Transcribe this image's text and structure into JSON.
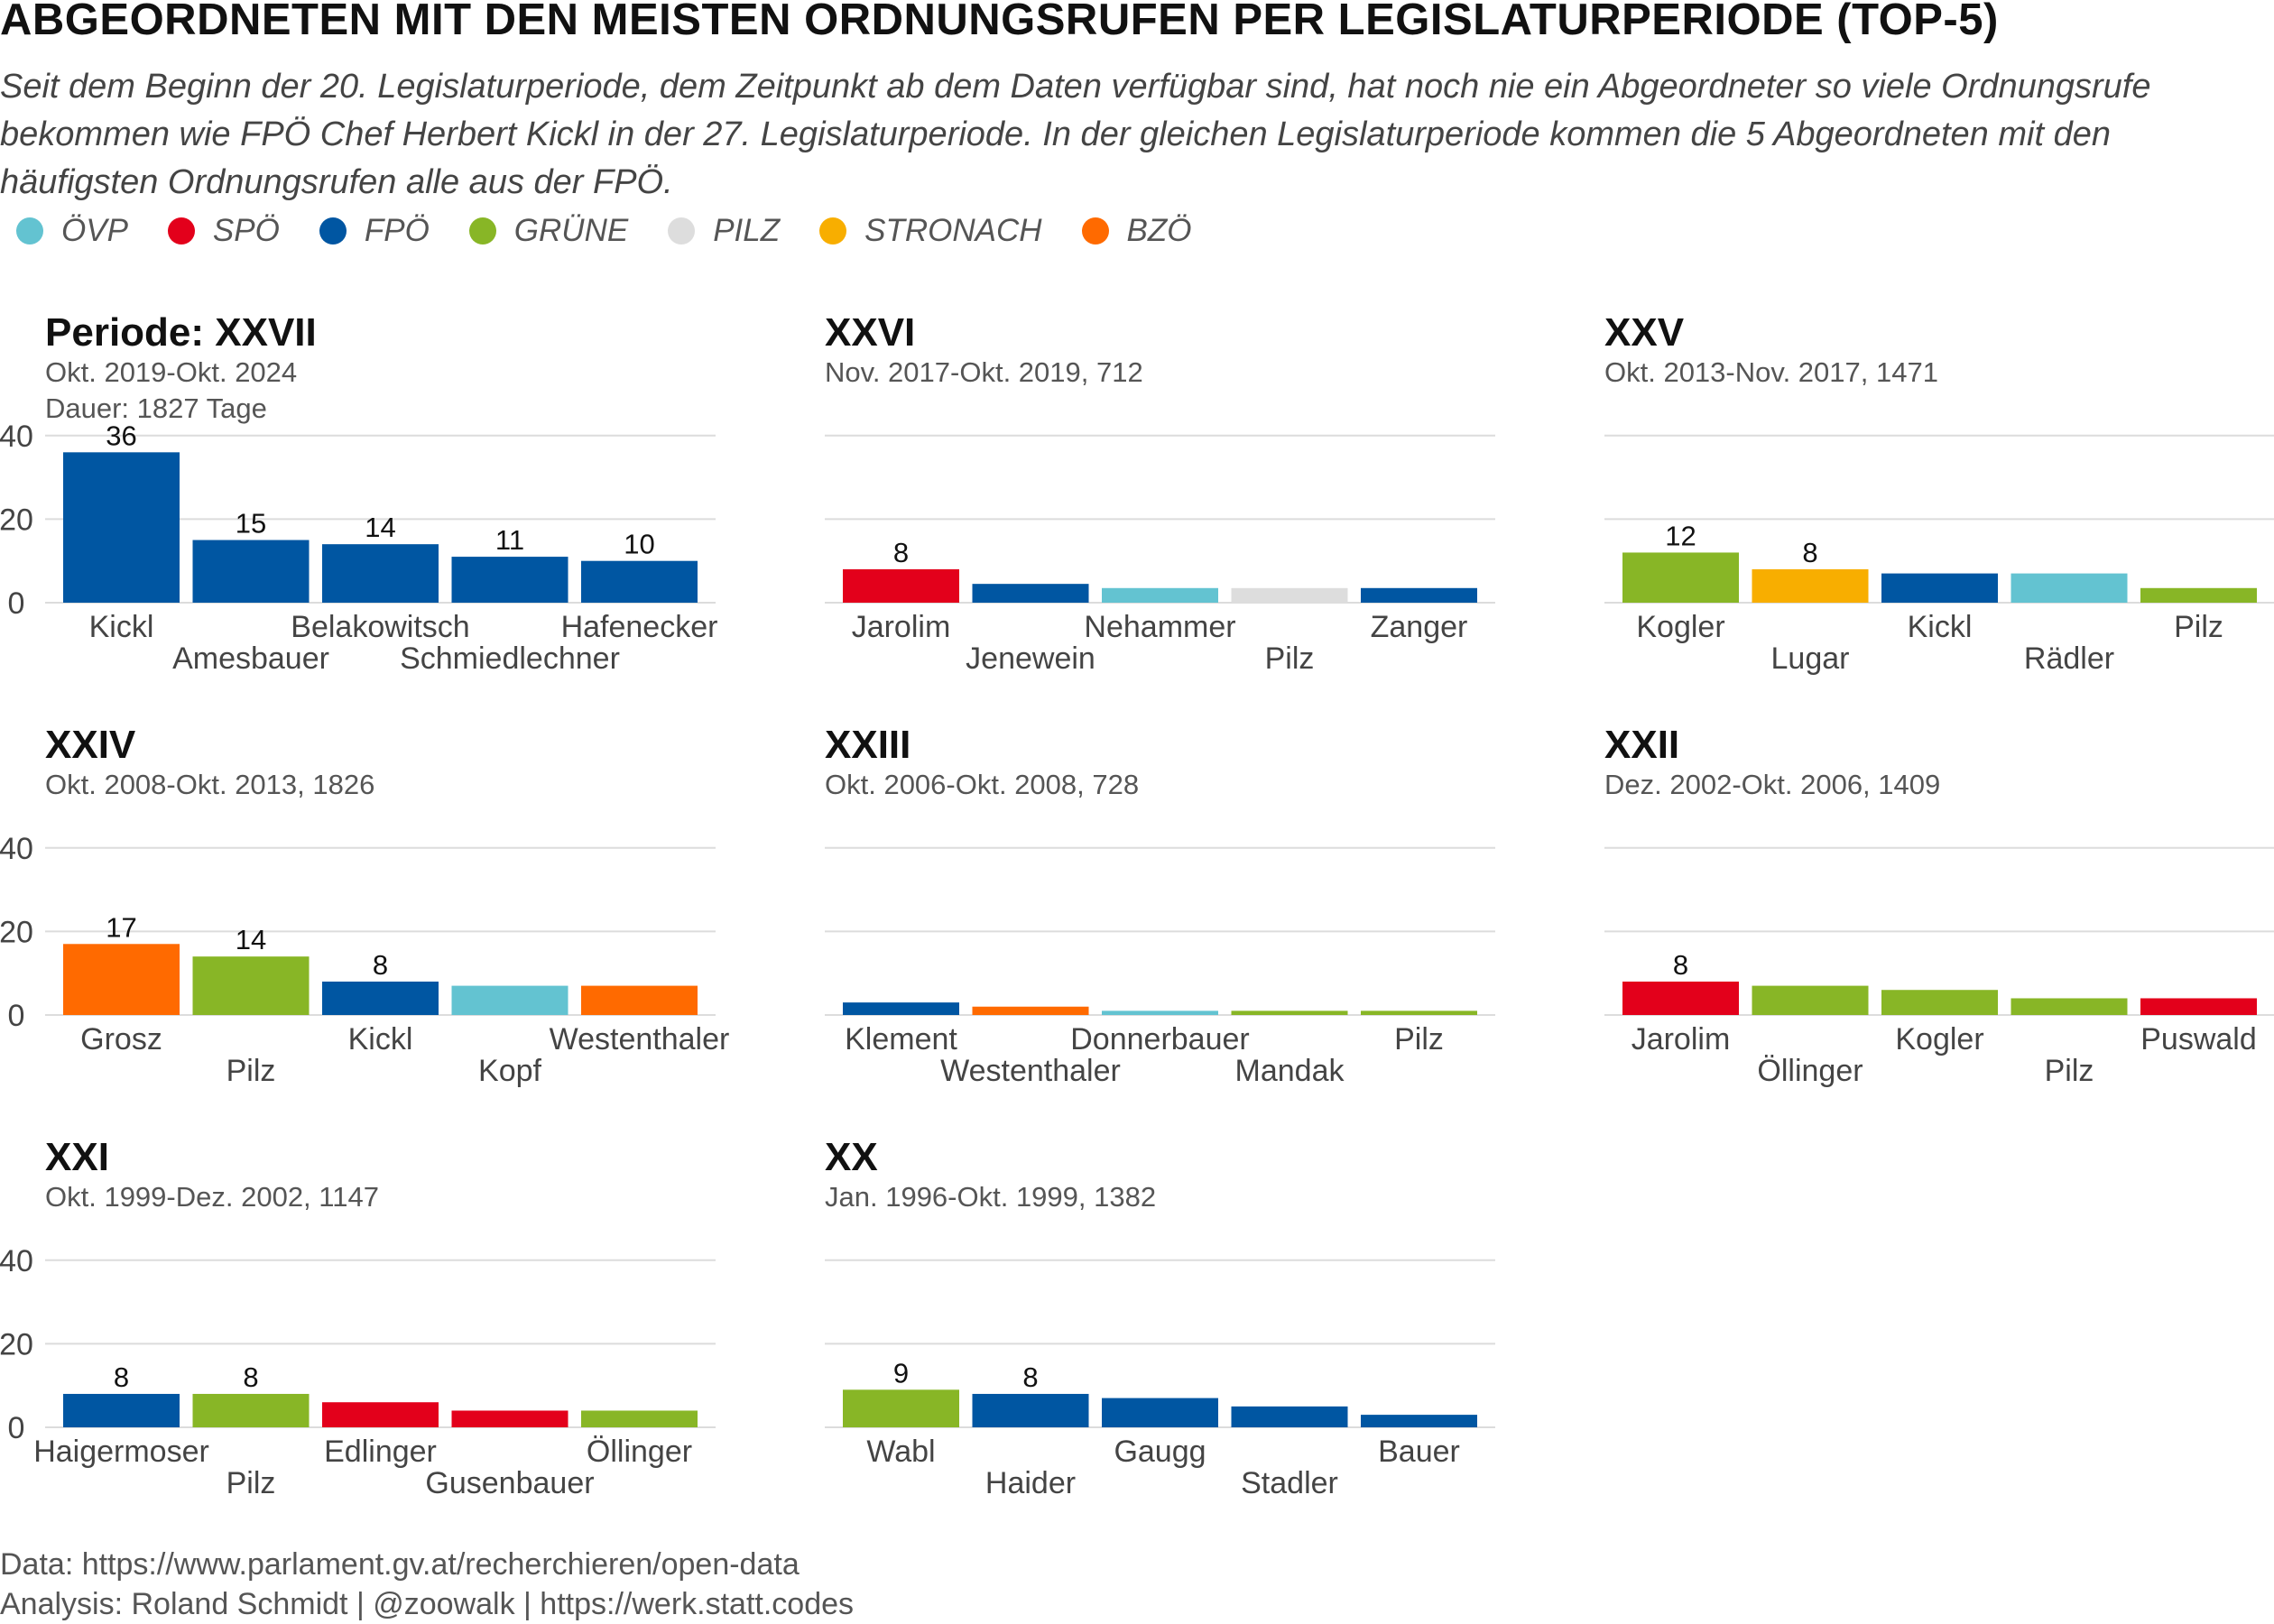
{
  "title": "ABGEORDNETEN MIT DEN MEISTEN ORDNUNGSRUFEN PER LEGISLATURPERIODE (TOP-5)",
  "subtitle": "Seit dem Beginn der 20. Legislaturperiode, dem Zeitpunkt ab dem Daten verfügbar sind, hat noch nie ein Abgeordneter so viele Ordnungsrufe bekommen wie FPÖ Chef Herbert Kickl in der 27. Legislaturperiode. In der gleichen Legislaturperiode kommen die 5 Abgeordneten mit den häufigsten Ordnungsrufen alle aus der FPÖ.",
  "legend": [
    {
      "label": "ÖVP",
      "color": "#63c3d1"
    },
    {
      "label": "SPÖ",
      "color": "#e3001b"
    },
    {
      "label": "FPÖ",
      "color": "#0056a2"
    },
    {
      "label": "GRÜNE",
      "color": "#88b626"
    },
    {
      "label": "PILZ",
      "color": "#dddddd"
    },
    {
      "label": "STRONACH",
      "color": "#f8ae00"
    },
    {
      "label": "BZÖ",
      "color": "#ff6a00"
    }
  ],
  "party_colors": {
    "ÖVP": "#63c3d1",
    "SPÖ": "#e3001b",
    "FPÖ": "#0056a2",
    "GRÜNE": "#88b626",
    "PILZ": "#dddddd",
    "STRONACH": "#f8ae00",
    "BZÖ": "#ff6a00"
  },
  "chart_data": [
    {
      "type": "bar",
      "title": "Periode: XXVII",
      "subtitle_lines": [
        "Okt. 2019-Okt. 2024",
        "Dauer: 1827 Tage"
      ],
      "categories": [
        "Kickl",
        "Amesbauer",
        "Belakowitsch",
        "Schmiedlechner",
        "Hafenecker"
      ],
      "values": [
        36,
        15,
        14,
        11,
        10
      ],
      "parties": [
        "FPÖ",
        "FPÖ",
        "FPÖ",
        "FPÖ",
        "FPÖ"
      ],
      "value_labels": [
        "36",
        "15",
        "14",
        "11",
        "10"
      ],
      "ylim": [
        0,
        40
      ],
      "yticks": [
        "0",
        "20",
        "40"
      ],
      "show_yticks": true
    },
    {
      "type": "bar",
      "title": "XXVI",
      "subtitle_lines": [
        "Nov. 2017-Okt. 2019, 712"
      ],
      "categories": [
        "Jarolim",
        "Jenewein",
        "Nehammer",
        "Pilz",
        "Zanger"
      ],
      "values": [
        8,
        4.5,
        3.5,
        3.5,
        3.5
      ],
      "parties": [
        "SPÖ",
        "FPÖ",
        "ÖVP",
        "PILZ",
        "FPÖ"
      ],
      "value_labels": [
        "8",
        "",
        "",
        "",
        ""
      ],
      "ylim": [
        0,
        40
      ],
      "show_yticks": false
    },
    {
      "type": "bar",
      "title": "XXV",
      "subtitle_lines": [
        "Okt. 2013-Nov. 2017, 1471"
      ],
      "categories": [
        "Kogler",
        "Lugar",
        "Kickl",
        "Rädler",
        "Pilz"
      ],
      "values": [
        12,
        8,
        7,
        7,
        3.5
      ],
      "parties": [
        "GRÜNE",
        "STRONACH",
        "FPÖ",
        "ÖVP",
        "GRÜNE"
      ],
      "value_labels": [
        "12",
        "8",
        "",
        "",
        ""
      ],
      "ylim": [
        0,
        40
      ],
      "show_yticks": false
    },
    {
      "type": "bar",
      "title": "XXIV",
      "subtitle_lines": [
        "Okt. 2008-Okt. 2013, 1826"
      ],
      "categories": [
        "Grosz",
        "Pilz",
        "Kickl",
        "Kopf",
        "Westenthaler"
      ],
      "values": [
        17,
        14,
        8,
        7,
        7
      ],
      "parties": [
        "BZÖ",
        "GRÜNE",
        "FPÖ",
        "ÖVP",
        "BZÖ"
      ],
      "value_labels": [
        "17",
        "14",
        "8",
        "",
        ""
      ],
      "ylim": [
        0,
        40
      ],
      "yticks": [
        "0",
        "20",
        "40"
      ],
      "show_yticks": true
    },
    {
      "type": "bar",
      "title": "XXIII",
      "subtitle_lines": [
        "Okt. 2006-Okt. 2008, 728"
      ],
      "categories": [
        "Klement",
        "Westenthaler",
        "Donnerbauer",
        "Mandak",
        "Pilz"
      ],
      "values": [
        3,
        2,
        1,
        1,
        1
      ],
      "parties": [
        "FPÖ",
        "BZÖ",
        "ÖVP",
        "GRÜNE",
        "GRÜNE"
      ],
      "value_labels": [
        "",
        "",
        "",
        "",
        ""
      ],
      "ylim": [
        0,
        40
      ],
      "show_yticks": false
    },
    {
      "type": "bar",
      "title": "XXII",
      "subtitle_lines": [
        "Dez. 2002-Okt. 2006, 1409"
      ],
      "categories": [
        "Jarolim",
        "Öllinger",
        "Kogler",
        "Pilz",
        "Puswald"
      ],
      "values": [
        8,
        7,
        6,
        4,
        4
      ],
      "parties": [
        "SPÖ",
        "GRÜNE",
        "GRÜNE",
        "GRÜNE",
        "SPÖ"
      ],
      "value_labels": [
        "8",
        "",
        "",
        "",
        ""
      ],
      "ylim": [
        0,
        40
      ],
      "show_yticks": false
    },
    {
      "type": "bar",
      "title": "XXI",
      "subtitle_lines": [
        "Okt. 1999-Dez. 2002, 1147"
      ],
      "categories": [
        "Haigermoser",
        "Pilz",
        "Edlinger",
        "Gusenbauer",
        "Öllinger"
      ],
      "values": [
        8,
        8,
        6,
        4,
        4
      ],
      "parties": [
        "FPÖ",
        "GRÜNE",
        "SPÖ",
        "SPÖ",
        "GRÜNE"
      ],
      "value_labels": [
        "8",
        "8",
        "",
        "",
        ""
      ],
      "ylim": [
        0,
        40
      ],
      "yticks": [
        "0",
        "20",
        "40"
      ],
      "show_yticks": true
    },
    {
      "type": "bar",
      "title": "XX",
      "subtitle_lines": [
        "Jan. 1996-Okt. 1999, 1382"
      ],
      "categories": [
        "Wabl",
        "Haider",
        "Gaugg",
        "Stadler",
        "Bauer"
      ],
      "values": [
        9,
        8,
        7,
        5,
        3
      ],
      "parties": [
        "GRÜNE",
        "FPÖ",
        "FPÖ",
        "FPÖ",
        "FPÖ"
      ],
      "value_labels": [
        "9",
        "8",
        "",
        "",
        ""
      ],
      "ylim": [
        0,
        40
      ],
      "show_yticks": false
    }
  ],
  "caption_lines": [
    "Data: https://www.parlament.gv.at/recherchieren/open-data",
    "Analysis: Roland Schmidt | @zoowalk | https://werk.statt.codes"
  ]
}
